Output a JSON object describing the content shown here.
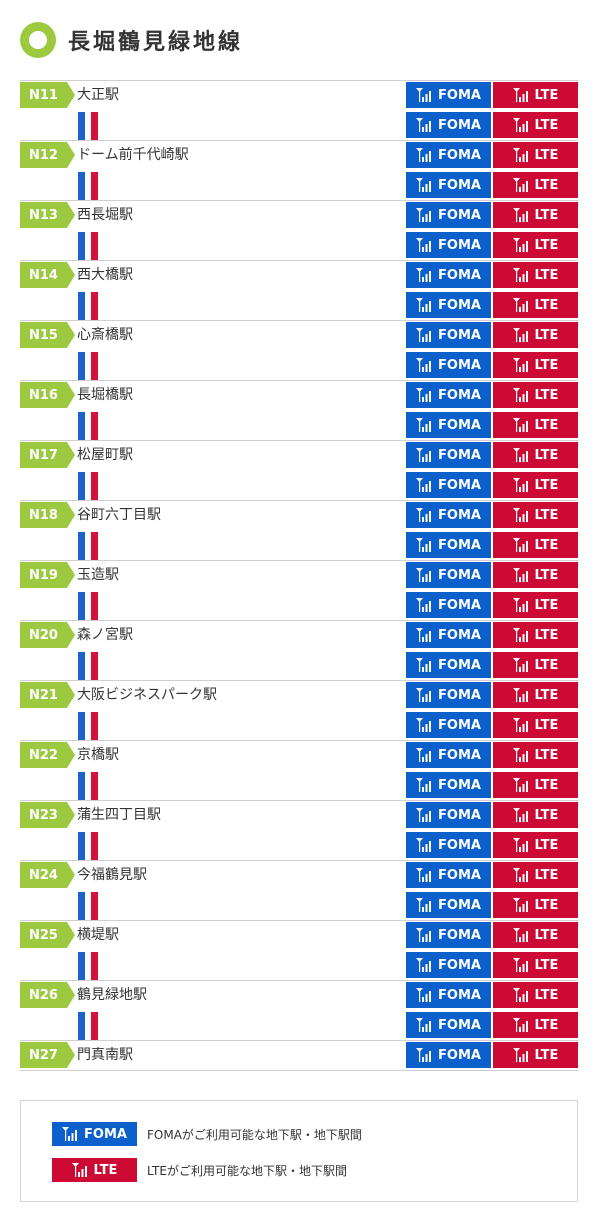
{
  "title": "長堀鶴見緑地線",
  "badges": {
    "foma": "FOMA",
    "lte": "LTE"
  },
  "colors": {
    "line_green": "#9dc940",
    "foma_blue": "#0b60cc",
    "lte_red": "#cc0a33",
    "track_blue": "#1f5fcf",
    "track_red": "#d2143c"
  },
  "icon": "antenna-icon",
  "stations": [
    {
      "code": "N11",
      "name": "大正駅"
    },
    {
      "code": "N12",
      "name": "ドーム前千代崎駅"
    },
    {
      "code": "N13",
      "name": "西長堀駅"
    },
    {
      "code": "N14",
      "name": "西大橋駅"
    },
    {
      "code": "N15",
      "name": "心斎橋駅"
    },
    {
      "code": "N16",
      "name": "長堀橋駅"
    },
    {
      "code": "N17",
      "name": "松屋町駅"
    },
    {
      "code": "N18",
      "name": "谷町六丁目駅"
    },
    {
      "code": "N19",
      "name": "玉造駅"
    },
    {
      "code": "N20",
      "name": "森ノ宮駅"
    },
    {
      "code": "N21",
      "name": "大阪ビジネスパーク駅"
    },
    {
      "code": "N22",
      "name": "京橋駅"
    },
    {
      "code": "N23",
      "name": "蒲生四丁目駅"
    },
    {
      "code": "N24",
      "name": "今福鶴見駅"
    },
    {
      "code": "N25",
      "name": "横堤駅"
    },
    {
      "code": "N26",
      "name": "鶴見緑地駅"
    },
    {
      "code": "N27",
      "name": "門真南駅"
    }
  ],
  "legend": {
    "foma_desc": "FOMAがご利用可能な地下駅・地下駅間",
    "lte_desc": "LTEがご利用可能な地下駅・地下駅間"
  }
}
